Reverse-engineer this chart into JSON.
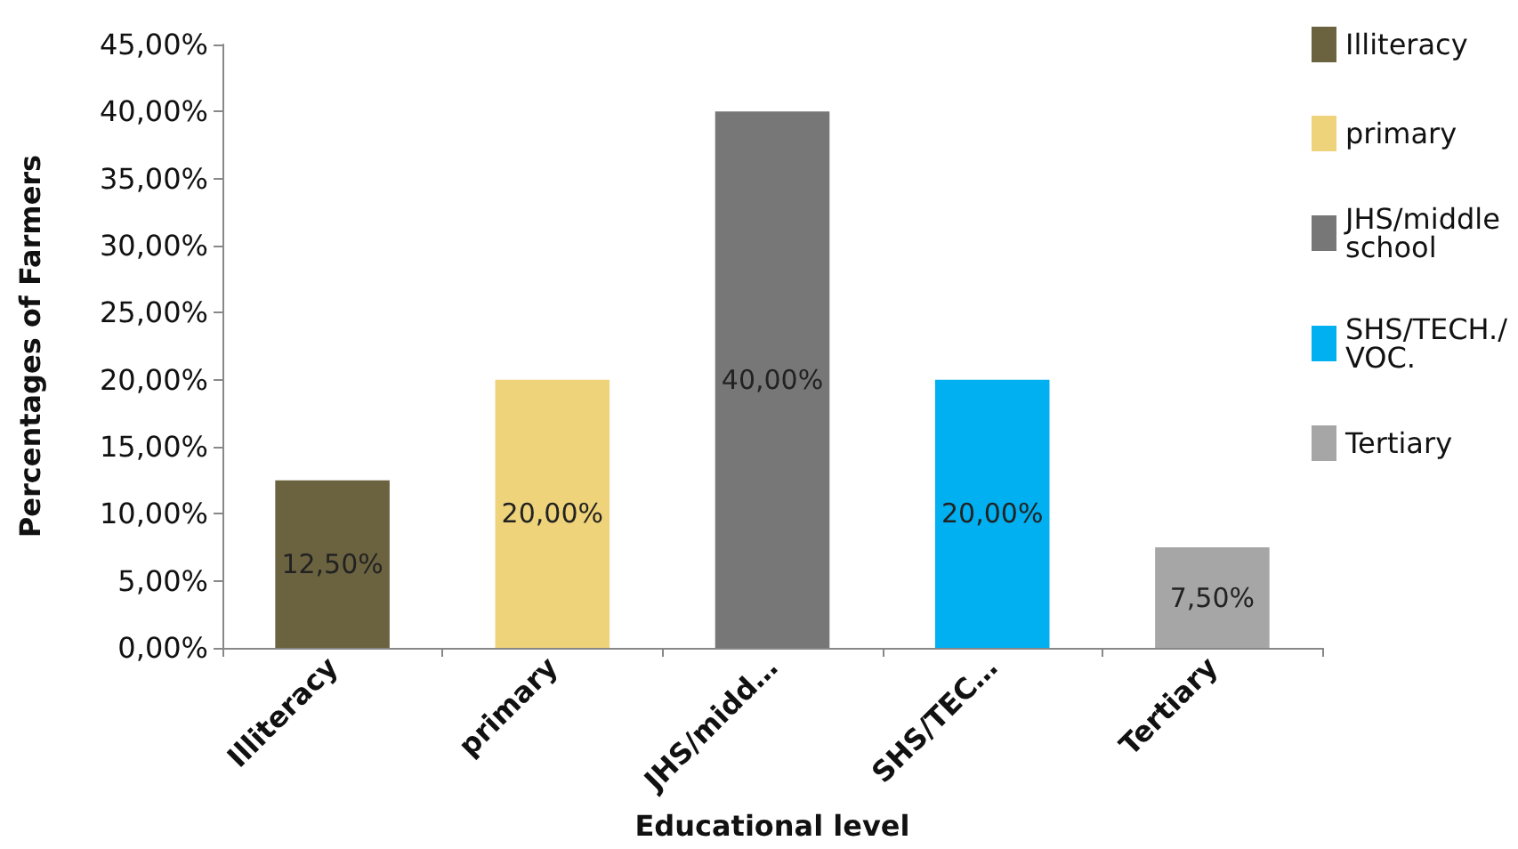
{
  "chart_data": {
    "type": "bar",
    "xlabel": "Educational level",
    "ylabel": "Percentages of Farmers",
    "categories": [
      "Illiteracy",
      "primary",
      "JHS/midd…",
      "SHS/TEC…",
      "Tertiary"
    ],
    "series": [
      {
        "name": "Illiteracy",
        "color": "#6b6340",
        "values": [
          12.5,
          null,
          null,
          null,
          null
        ],
        "value_labels": [
          "12,50%",
          null,
          null,
          null,
          null
        ]
      },
      {
        "name": "primary",
        "color": "#efd37a",
        "values": [
          null,
          20,
          null,
          null,
          null
        ],
        "value_labels": [
          null,
          "20,00%",
          null,
          null,
          null
        ]
      },
      {
        "name": "JHS/middle school",
        "color": "#777777",
        "values": [
          null,
          null,
          40,
          null,
          null
        ],
        "value_labels": [
          null,
          null,
          "40,00%",
          null,
          null
        ]
      },
      {
        "name": "SHS/TECH./VOC.",
        "color": "#00b0f0",
        "values": [
          null,
          null,
          null,
          20,
          null
        ],
        "value_labels": [
          null,
          null,
          null,
          "20,00%",
          null
        ]
      },
      {
        "name": "Tertiary",
        "color": "#a6a6a6",
        "values": [
          null,
          null,
          null,
          null,
          7.5
        ],
        "value_labels": [
          null,
          null,
          null,
          null,
          "7,50%"
        ]
      }
    ],
    "ylim": [
      0,
      45
    ],
    "yticks": [
      {
        "value": 0,
        "label": "0,00%"
      },
      {
        "value": 5,
        "label": "5,00%"
      },
      {
        "value": 10,
        "label": "10,00%"
      },
      {
        "value": 15,
        "label": "15,00%"
      },
      {
        "value": 20,
        "label": "20,00%"
      },
      {
        "value": 25,
        "label": "25,00%"
      },
      {
        "value": 30,
        "label": "30,00%"
      },
      {
        "value": 35,
        "label": "35,00%"
      },
      {
        "value": 40,
        "label": "40,00%"
      },
      {
        "value": 45,
        "label": "45,00%"
      }
    ],
    "legend": "right"
  }
}
